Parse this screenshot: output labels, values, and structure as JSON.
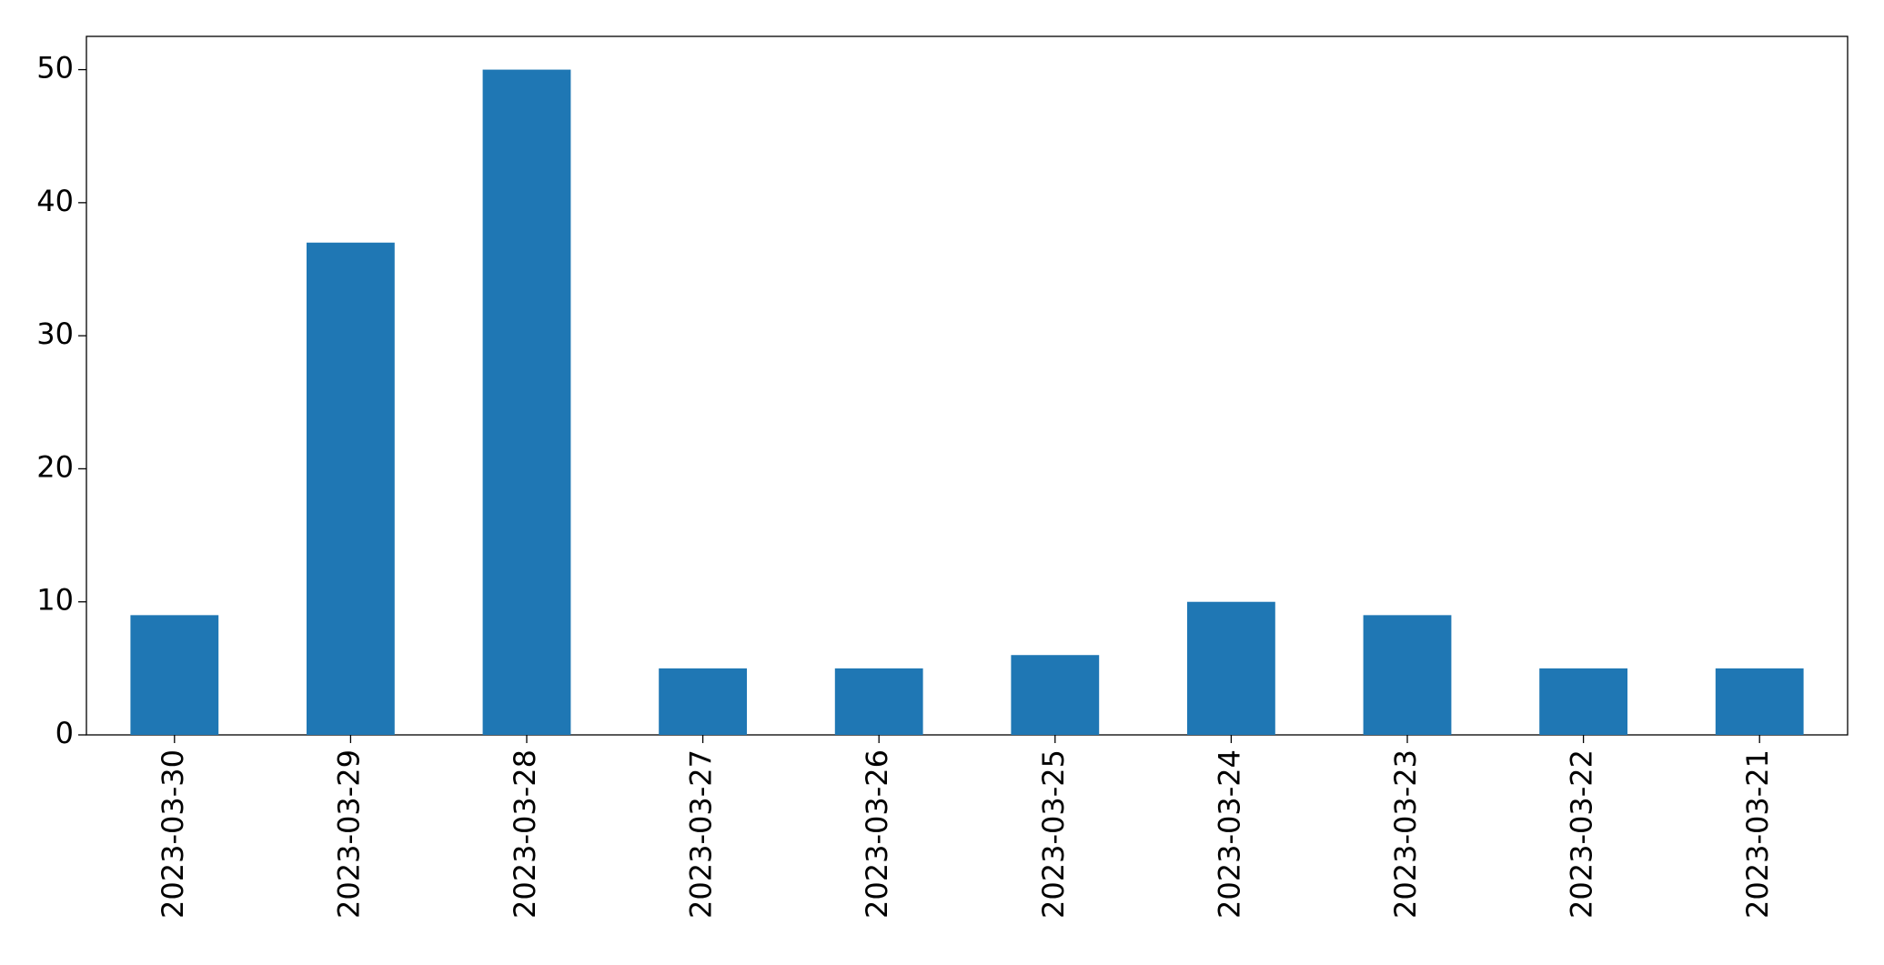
{
  "chart_data": {
    "type": "bar",
    "categories": [
      "2023-03-30",
      "2023-03-29",
      "2023-03-28",
      "2023-03-27",
      "2023-03-26",
      "2023-03-25",
      "2023-03-24",
      "2023-03-23",
      "2023-03-22",
      "2023-03-21"
    ],
    "values": [
      9,
      37,
      50,
      5,
      5,
      6,
      10,
      9,
      5,
      5
    ],
    "color": "#1f77b4",
    "ylim": [
      0,
      52.5
    ],
    "yticks": [
      0,
      10,
      20,
      30,
      40,
      50
    ],
    "grid": false
  }
}
